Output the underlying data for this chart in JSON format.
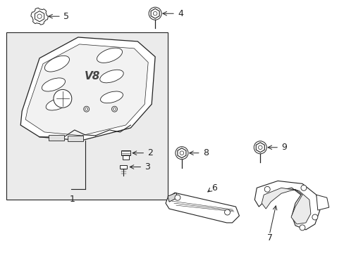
{
  "bg_color": "#ffffff",
  "line_color": "#222222",
  "cover_fill": "#e8e8e8",
  "part_fill": "#e0e0e0",
  "box_fill": "#eeeeee",
  "font_size": 9.0,
  "arrow_lw": 0.7,
  "part_lw": 0.8
}
